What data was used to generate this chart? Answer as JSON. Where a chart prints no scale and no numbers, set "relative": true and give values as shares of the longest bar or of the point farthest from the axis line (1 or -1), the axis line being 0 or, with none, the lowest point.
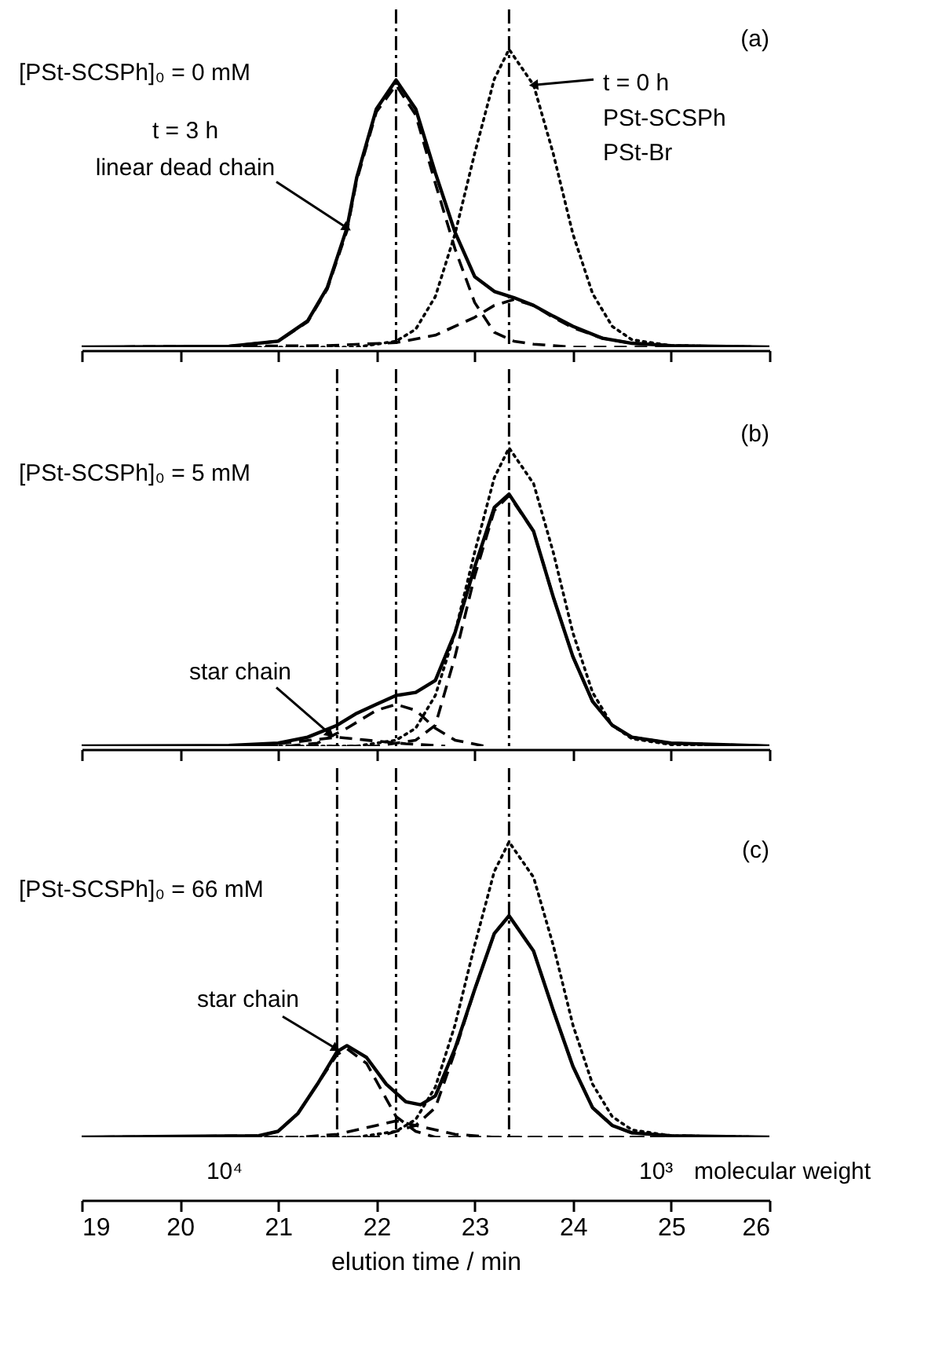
{
  "chart_data": [
    {
      "type": "line",
      "relative": true,
      "xlim": [
        19,
        26
      ],
      "xticks": [
        19,
        20,
        21,
        22,
        23,
        24,
        25,
        26
      ],
      "tick_labels": false,
      "annotations": [
        "(a)",
        "[PSt-SCSPh]₀ = 0 mM",
        "t = 3 h",
        {
          "text": "linear dead chain",
          "x": 21.7,
          "y": 0.4
        },
        {
          "text": "t = 0 h",
          "x": 23.6,
          "y": 0.88
        },
        "PSt-SCSPh",
        "PSt-Br"
      ],
      "ref_lines": [
        {
          "axis": "x",
          "value": 22.2
        },
        {
          "axis": "x",
          "value": 23.35
        }
      ],
      "series": [
        {
          "color": "#000000",
          "line_style": "solid",
          "x": [
            19,
            20.5,
            21,
            21.3,
            21.5,
            21.7,
            21.8,
            22,
            22.2,
            22.4,
            22.6,
            22.8,
            23,
            23.2,
            23.4,
            23.6,
            23.8,
            24,
            24.3,
            24.6,
            25,
            26
          ],
          "values": [
            0,
            0.003,
            0.02,
            0.088,
            0.2,
            0.4,
            0.57,
            0.8,
            0.897,
            0.8,
            0.585,
            0.386,
            0.237,
            0.187,
            0.166,
            0.14,
            0.104,
            0.07,
            0.03,
            0.013,
            0.005,
            0
          ]
        },
        {
          "color": "#000000",
          "line_style": "dashed",
          "x": [
            19,
            20.5,
            21,
            21.3,
            21.5,
            21.7,
            21.8,
            22,
            22.2,
            22.4,
            22.6,
            22.8,
            23,
            23.2,
            23.4,
            23.6,
            24,
            26
          ],
          "values": [
            0,
            0.003,
            0.02,
            0.085,
            0.195,
            0.39,
            0.56,
            0.79,
            0.88,
            0.78,
            0.55,
            0.33,
            0.15,
            0.05,
            0.02,
            0.01,
            0,
            0
          ]
        },
        {
          "color": "#000000",
          "line_style": "dashed",
          "x": [
            19,
            21.5,
            22.2,
            22.6,
            23,
            23.2,
            23.4,
            23.6,
            23.8,
            24,
            24.3,
            24.6,
            25,
            26
          ],
          "values": [
            0,
            0.005,
            0.015,
            0.04,
            0.1,
            0.14,
            0.16,
            0.14,
            0.1,
            0.065,
            0.03,
            0.013,
            0.005,
            0
          ]
        },
        {
          "color": "#000000",
          "line_style": "dotted",
          "x": [
            19,
            21.8,
            22.2,
            22.4,
            22.6,
            22.8,
            23,
            23.2,
            23.35,
            23.6,
            23.8,
            24,
            24.2,
            24.4,
            24.6,
            25,
            26
          ],
          "values": [
            0,
            0,
            0.02,
            0.06,
            0.17,
            0.38,
            0.65,
            0.9,
            1,
            0.88,
            0.65,
            0.38,
            0.18,
            0.07,
            0.025,
            0.005,
            0
          ]
        }
      ]
    },
    {
      "type": "line",
      "relative": true,
      "xlim": [
        19,
        26
      ],
      "xticks": [
        19,
        20,
        21,
        22,
        23,
        24,
        25,
        26
      ],
      "tick_labels": false,
      "annotations": [
        "(b)",
        "[PSt-SCSPh]₀ = 5 mM",
        {
          "text": "star chain",
          "x": 21.53,
          "y": 0.04
        }
      ],
      "ref_lines": [
        {
          "axis": "x",
          "value": 21.6
        },
        {
          "axis": "x",
          "value": 22.2
        },
        {
          "axis": "x",
          "value": 23.35
        }
      ],
      "series": [
        {
          "color": "#000000",
          "line_style": "solid",
          "x": [
            19,
            20.5,
            21,
            21.3,
            21.6,
            21.8,
            22,
            22.2,
            22.4,
            22.6,
            22.8,
            23,
            23.2,
            23.35,
            23.6,
            23.8,
            24,
            24.2,
            24.4,
            24.6,
            25,
            26
          ],
          "values": [
            0,
            0.002,
            0.01,
            0.03,
            0.07,
            0.11,
            0.14,
            0.17,
            0.18,
            0.22,
            0.38,
            0.6,
            0.8,
            0.845,
            0.72,
            0.5,
            0.3,
            0.15,
            0.07,
            0.03,
            0.01,
            0
          ]
        },
        {
          "color": "#000000",
          "line_style": "dashed",
          "x": [
            19,
            22,
            22.4,
            22.6,
            22.8,
            23,
            23.2,
            23.35,
            23.6,
            23.8,
            24,
            24.2,
            24.4,
            24.6,
            25,
            26
          ],
          "values": [
            0,
            0,
            0.02,
            0.07,
            0.3,
            0.57,
            0.79,
            0.84,
            0.72,
            0.5,
            0.3,
            0.15,
            0.07,
            0.03,
            0.01,
            0
          ]
        },
        {
          "color": "#000000",
          "line_style": "dashed",
          "x": [
            21.1,
            21.4,
            21.7,
            22,
            22.2,
            22.4,
            22.6,
            22.8,
            23.1
          ],
          "values": [
            0,
            0.01,
            0.06,
            0.12,
            0.14,
            0.12,
            0.06,
            0.02,
            0
          ]
        },
        {
          "color": "#000000",
          "line_style": "dashed",
          "x": [
            20.8,
            21.2,
            21.6,
            21.9,
            22.3,
            22.7
          ],
          "values": [
            0,
            0.015,
            0.03,
            0.02,
            0.008,
            0
          ]
        },
        {
          "color": "#000000",
          "line_style": "dotted",
          "x": [
            19,
            21.8,
            22.2,
            22.4,
            22.6,
            22.8,
            23,
            23.2,
            23.35,
            23.6,
            23.8,
            24,
            24.2,
            24.4,
            24.6,
            25,
            26
          ],
          "values": [
            0,
            0,
            0.02,
            0.06,
            0.17,
            0.38,
            0.65,
            0.9,
            1,
            0.88,
            0.65,
            0.38,
            0.18,
            0.07,
            0.025,
            0.005,
            0
          ]
        }
      ]
    },
    {
      "type": "line",
      "relative": true,
      "xlim": [
        19,
        26
      ],
      "xticks": [
        19,
        20,
        21,
        22,
        23,
        24,
        25,
        26
      ],
      "xlabel": "elution time / min",
      "annotations": [
        "(c)",
        "[PSt-SCSPh]₀ = 66 mM",
        {
          "text": "star chain",
          "x": 21.59,
          "y": 0.3
        },
        "10⁴",
        "10³",
        "molecular weight"
      ],
      "ref_lines": [
        {
          "axis": "x",
          "value": 21.6
        },
        {
          "axis": "x",
          "value": 22.2
        },
        {
          "axis": "x",
          "value": 23.35
        }
      ],
      "series": [
        {
          "color": "#000000",
          "line_style": "solid",
          "x": [
            19,
            20.8,
            21,
            21.2,
            21.4,
            21.6,
            21.7,
            21.9,
            22.1,
            22.3,
            22.45,
            22.6,
            22.8,
            23,
            23.2,
            23.35,
            23.6,
            23.8,
            24,
            24.2,
            24.4,
            24.6,
            25,
            26
          ],
          "values": [
            0,
            0.005,
            0.02,
            0.08,
            0.18,
            0.29,
            0.31,
            0.27,
            0.18,
            0.12,
            0.11,
            0.14,
            0.3,
            0.5,
            0.69,
            0.75,
            0.63,
            0.43,
            0.24,
            0.1,
            0.04,
            0.015,
            0.005,
            0
          ]
        },
        {
          "color": "#000000",
          "line_style": "dashed",
          "x": [
            19,
            20.8,
            21,
            21.2,
            21.4,
            21.6,
            21.7,
            21.9,
            22.1,
            22.2,
            22.4,
            22.6,
            26
          ],
          "values": [
            0,
            0.005,
            0.02,
            0.08,
            0.18,
            0.28,
            0.3,
            0.25,
            0.13,
            0.07,
            0.02,
            0,
            0
          ]
        },
        {
          "color": "#000000",
          "line_style": "dashed",
          "x": [
            19,
            21.2,
            21.6,
            22,
            22.2,
            22.4,
            22.8,
            23.2,
            26
          ],
          "values": [
            0,
            0,
            0.01,
            0.04,
            0.055,
            0.04,
            0.01,
            0,
            0
          ]
        },
        {
          "color": "#000000",
          "line_style": "dashed",
          "x": [
            19,
            22,
            22.4,
            22.6,
            22.8,
            23,
            23.2,
            23.35,
            23.6,
            23.8,
            24,
            24.2,
            24.4,
            24.6,
            25,
            26
          ],
          "values": [
            0,
            0,
            0.04,
            0.1,
            0.29,
            0.5,
            0.69,
            0.75,
            0.63,
            0.43,
            0.24,
            0.1,
            0.04,
            0.015,
            0.005,
            0
          ]
        },
        {
          "color": "#000000",
          "line_style": "dotted",
          "x": [
            19,
            21.8,
            22.2,
            22.4,
            22.6,
            22.8,
            23,
            23.2,
            23.35,
            23.6,
            23.8,
            24,
            24.2,
            24.4,
            24.6,
            25,
            26
          ],
          "values": [
            0,
            0,
            0.02,
            0.06,
            0.17,
            0.38,
            0.65,
            0.9,
            1,
            0.88,
            0.65,
            0.38,
            0.18,
            0.07,
            0.025,
            0.005,
            0
          ]
        }
      ]
    }
  ]
}
